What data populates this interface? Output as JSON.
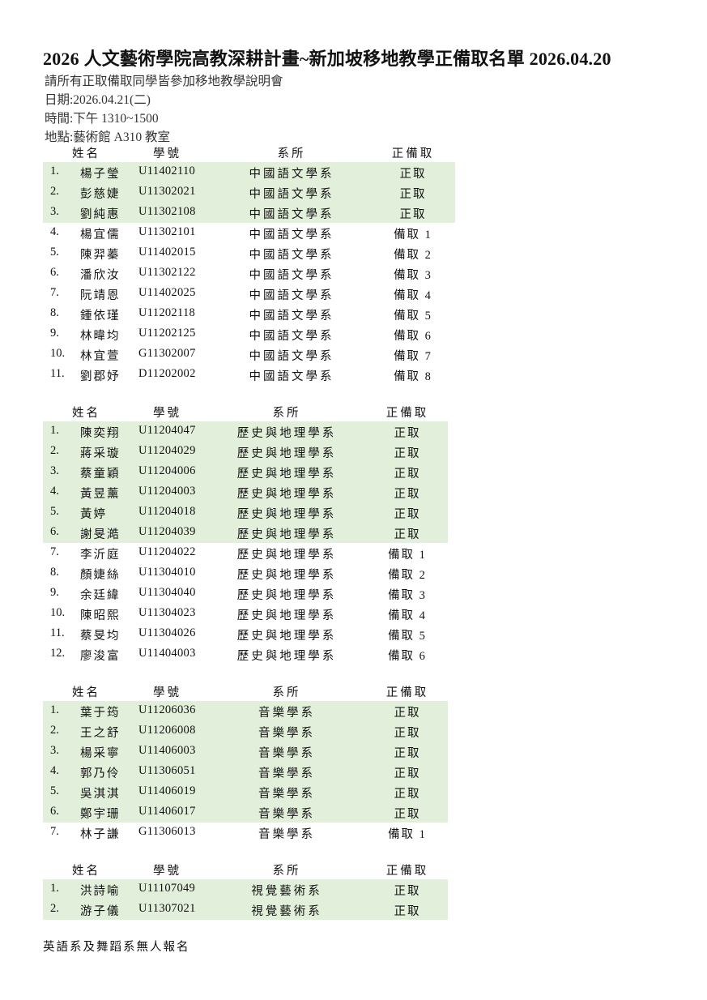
{
  "title": "2026 人文藝術學院高教深耕計畫~新加坡移地教學正備取名單 2026.04.20",
  "info": {
    "notice": "請所有正取備取同學皆參加移地教學說明會",
    "date": "日期:2026.04.21(二)",
    "time": "時間:下午 1310~1500",
    "place": "地點:藝術館 A310 教室"
  },
  "columns": {
    "name": "姓名",
    "id": "學號",
    "dept": "系所",
    "status": "正備取"
  },
  "colors": {
    "admitted_row_bg": "#e2efda"
  },
  "tables": [
    {
      "rows": [
        {
          "no": "1.",
          "name": "楊子瑩",
          "id": "U11402110",
          "dept": "中國語文學系",
          "status": "正取"
        },
        {
          "no": "2.",
          "name": "彭慈婕",
          "id": "U11302021",
          "dept": "中國語文學系",
          "status": "正取"
        },
        {
          "no": "3.",
          "name": "劉純惠",
          "id": "U11302108",
          "dept": "中國語文學系",
          "status": "正取"
        },
        {
          "no": "4.",
          "name": "楊宜儒",
          "id": "U11302101",
          "dept": "中國語文學系",
          "status": "備取 1"
        },
        {
          "no": "5.",
          "name": "陳羿蓁",
          "id": "U11402015",
          "dept": "中國語文學系",
          "status": "備取 2"
        },
        {
          "no": "6.",
          "name": "潘欣汝",
          "id": "U11302122",
          "dept": "中國語文學系",
          "status": "備取 3"
        },
        {
          "no": "7.",
          "name": "阮靖恩",
          "id": "U11402025",
          "dept": "中國語文學系",
          "status": "備取 4"
        },
        {
          "no": "8.",
          "name": "鍾依瑾",
          "id": "U11202118",
          "dept": "中國語文學系",
          "status": "備取 5"
        },
        {
          "no": "9.",
          "name": "林暐均",
          "id": "U11202125",
          "dept": "中國語文學系",
          "status": "備取 6"
        },
        {
          "no": "10.",
          "name": "林宜萱",
          "id": "G11302007",
          "dept": "中國語文學系",
          "status": "備取 7"
        },
        {
          "no": "11.",
          "name": "劉郡妤",
          "id": "D11202002",
          "dept": "中國語文學系",
          "status": "備取 8"
        }
      ]
    },
    {
      "rows": [
        {
          "no": "1.",
          "name": "陳奕翔",
          "id": "U11204047",
          "dept": "歷史與地理學系",
          "status": "正取"
        },
        {
          "no": "2.",
          "name": "蔣采璇",
          "id": "U11204029",
          "dept": "歷史與地理學系",
          "status": "正取"
        },
        {
          "no": "3.",
          "name": "蔡童穎",
          "id": "U11204006",
          "dept": "歷史與地理學系",
          "status": "正取"
        },
        {
          "no": "4.",
          "name": "黃昱薰",
          "id": "U11204003",
          "dept": "歷史與地理學系",
          "status": "正取"
        },
        {
          "no": "5.",
          "name": "黃婷",
          "id": "U11204018",
          "dept": "歷史與地理學系",
          "status": "正取"
        },
        {
          "no": "6.",
          "name": "謝旻澔",
          "id": "U11204039",
          "dept": "歷史與地理學系",
          "status": "正取"
        },
        {
          "no": "7.",
          "name": "李沂庭",
          "id": "U11204022",
          "dept": "歷史與地理學系",
          "status": "備取 1"
        },
        {
          "no": "8.",
          "name": "顏婕絲",
          "id": "U11304010",
          "dept": "歷史與地理學系",
          "status": "備取 2"
        },
        {
          "no": "9.",
          "name": "余廷緯",
          "id": "U11304040",
          "dept": "歷史與地理學系",
          "status": "備取 3"
        },
        {
          "no": "10.",
          "name": "陳昭熙",
          "id": "U11304023",
          "dept": "歷史與地理學系",
          "status": "備取 4"
        },
        {
          "no": "11.",
          "name": "蔡旻均",
          "id": "U11304026",
          "dept": "歷史與地理學系",
          "status": "備取 5"
        },
        {
          "no": "12.",
          "name": "廖浚富",
          "id": "U11404003",
          "dept": "歷史與地理學系",
          "status": "備取 6"
        }
      ]
    },
    {
      "rows": [
        {
          "no": "1.",
          "name": "葉于筠",
          "id": "U11206036",
          "dept": "音樂學系",
          "status": "正取"
        },
        {
          "no": "2.",
          "name": "王之舒",
          "id": "U11206008",
          "dept": "音樂學系",
          "status": "正取"
        },
        {
          "no": "3.",
          "name": "楊采寧",
          "id": "U11406003",
          "dept": "音樂學系",
          "status": "正取"
        },
        {
          "no": "4.",
          "name": "郭乃伶",
          "id": "U11306051",
          "dept": "音樂學系",
          "status": "正取"
        },
        {
          "no": "5.",
          "name": "吳淇淇",
          "id": "U11406019",
          "dept": "音樂學系",
          "status": "正取"
        },
        {
          "no": "6.",
          "name": "鄭宇珊",
          "id": "U11406017",
          "dept": "音樂學系",
          "status": "正取"
        },
        {
          "no": "7.",
          "name": "林子謙",
          "id": "G11306013",
          "dept": "音樂學系",
          "status": "備取 1"
        }
      ]
    },
    {
      "rows": [
        {
          "no": "1.",
          "name": "洪詩喻",
          "id": "U11107049",
          "dept": "視覺藝術系",
          "status": "正取"
        },
        {
          "no": "2.",
          "name": "游子儀",
          "id": "U11307021",
          "dept": "視覺藝術系",
          "status": "正取"
        }
      ]
    }
  ],
  "footer": "英語系及舞蹈系無人報名"
}
